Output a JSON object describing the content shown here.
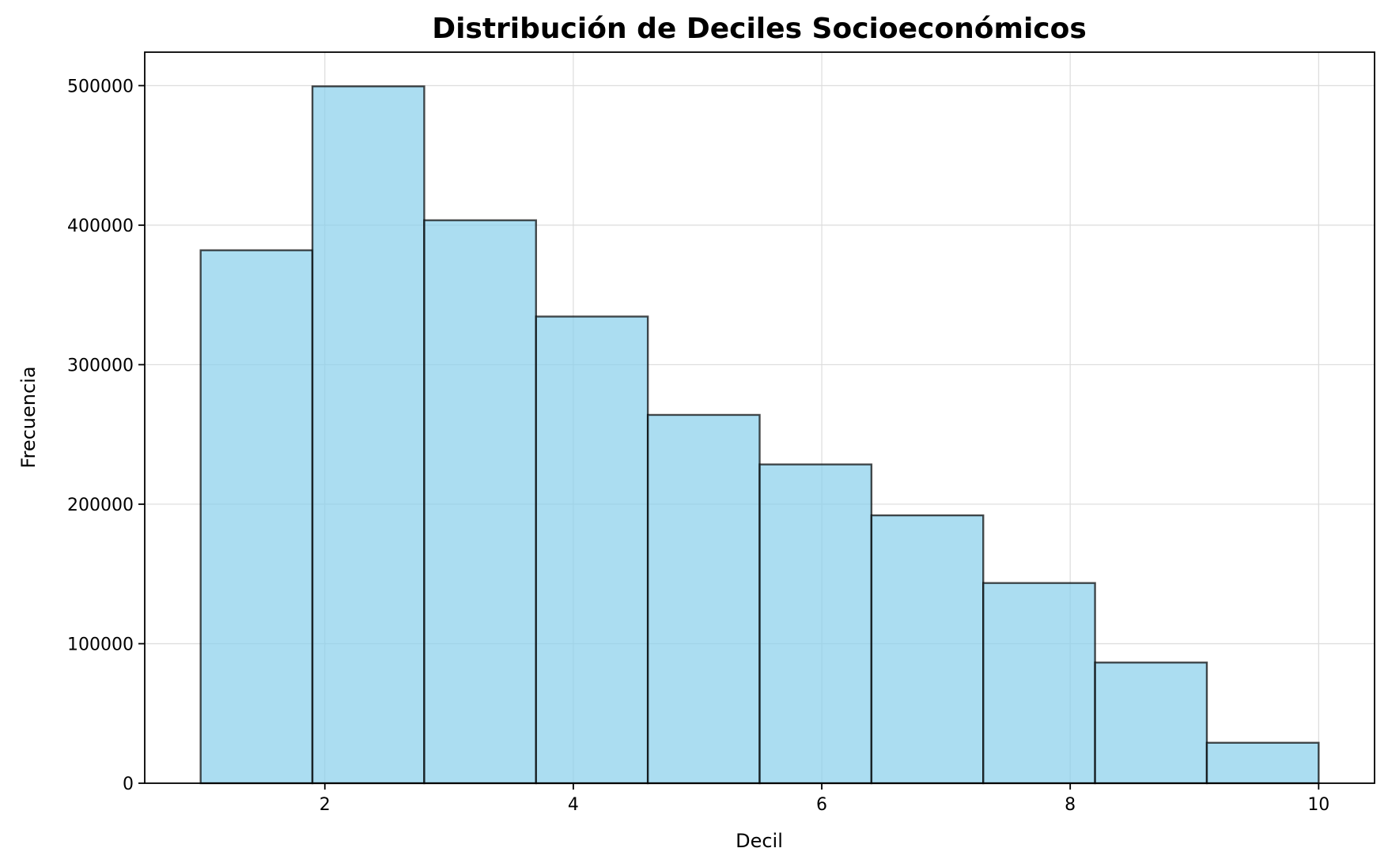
{
  "chart_data": {
    "type": "bar",
    "title": "Distribución de Deciles Socioeconómicos",
    "xlabel": "Decil",
    "ylabel": "Frecuencia",
    "bin_edges": [
      1.0,
      1.9,
      2.8,
      3.7,
      4.6,
      5.5,
      6.4,
      7.3,
      8.2,
      9.1,
      10.0
    ],
    "values": [
      382000,
      499500,
      403500,
      334500,
      264000,
      228500,
      192000,
      143500,
      86500,
      29000
    ],
    "xlim": [
      0.55,
      10.45
    ],
    "ylim": [
      0,
      524000
    ],
    "xticks": [
      2,
      4,
      6,
      8,
      10
    ],
    "xtick_labels": [
      "2",
      "4",
      "6",
      "8",
      "10"
    ],
    "yticks": [
      0,
      100000,
      200000,
      300000,
      400000,
      500000
    ],
    "ytick_labels": [
      "0",
      "100000",
      "200000",
      "300000",
      "400000",
      "500000"
    ],
    "grid": true,
    "bar_color": "#87ceeb",
    "edge_color": "#000000"
  }
}
